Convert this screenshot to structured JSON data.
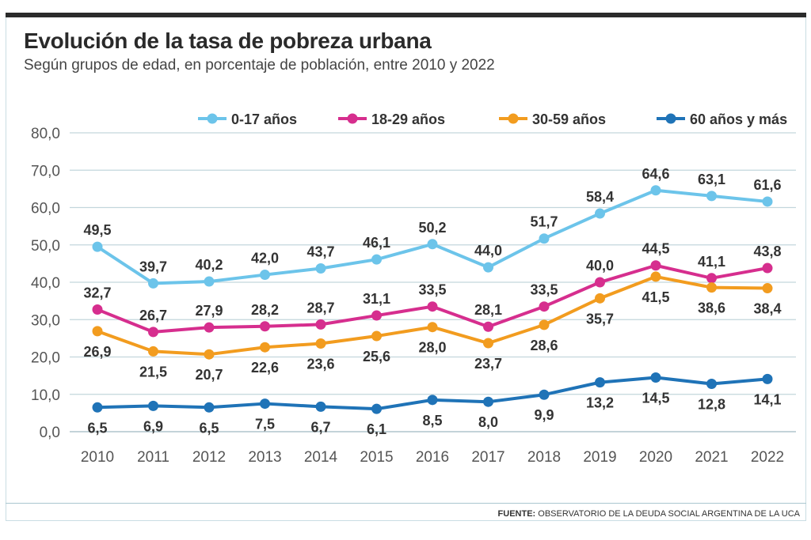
{
  "chart_data": {
    "type": "line",
    "title": "Evolución de la tasa de pobreza urbana",
    "subtitle": "Según grupos de edad, en porcentaje de población, entre 2010 y 2022",
    "xlabel": "",
    "ylabel": "",
    "ylim": [
      0,
      80
    ],
    "yticks": [
      "0,0",
      "10,0",
      "20,0",
      "30,0",
      "40,0",
      "50,0",
      "60,0",
      "70,0",
      "80,0"
    ],
    "categories": [
      "2010",
      "2011",
      "2012",
      "2013",
      "2014",
      "2015",
      "2016",
      "2017",
      "2018",
      "2019",
      "2020",
      "2021",
      "2022"
    ],
    "series": [
      {
        "name": "0-17 años",
        "color": "#6cc4ea",
        "values": [
          49.5,
          39.7,
          40.2,
          42.0,
          43.7,
          46.1,
          50.2,
          44.0,
          51.7,
          58.4,
          64.6,
          63.1,
          61.6
        ],
        "labels": [
          "49,5",
          "39,7",
          "40,2",
          "42,0",
          "43,7",
          "46,1",
          "50,2",
          "44,0",
          "51,7",
          "58,4",
          "64,6",
          "63,1",
          "61,6"
        ],
        "label_position": "above"
      },
      {
        "name": "18-29 años",
        "color": "#d62e8e",
        "values": [
          32.7,
          26.7,
          27.9,
          28.2,
          28.7,
          31.1,
          33.5,
          28.1,
          33.5,
          40.0,
          44.5,
          41.1,
          43.8
        ],
        "labels": [
          "32,7",
          "26,7",
          "27,9",
          "28,2",
          "28,7",
          "31,1",
          "33,5",
          "28,1",
          "33,5",
          "40,0",
          "44,5",
          "41,1",
          "43,8"
        ],
        "label_position": "above"
      },
      {
        "name": "30-59 años",
        "color": "#f29c1f",
        "values": [
          26.9,
          21.5,
          20.7,
          22.6,
          23.6,
          25.6,
          28.0,
          23.7,
          28.6,
          35.7,
          41.5,
          38.6,
          38.4
        ],
        "labels": [
          "26,9",
          "21,5",
          "20,7",
          "22,6",
          "23,6",
          "25,6",
          "28,0",
          "23,7",
          "28,6",
          "35,7",
          "41,5",
          "38,6",
          "38,4"
        ],
        "label_position": "below"
      },
      {
        "name": "60 años y más",
        "color": "#1f73b7",
        "values": [
          6.5,
          6.9,
          6.5,
          7.5,
          6.7,
          6.1,
          8.5,
          8.0,
          9.9,
          13.2,
          14.5,
          12.8,
          14.1
        ],
        "labels": [
          "6,5",
          "6,9",
          "6,5",
          "7,5",
          "6,7",
          "6,1",
          "8,5",
          "8,0",
          "9,9",
          "13,2",
          "14,5",
          "12,8",
          "14,1"
        ],
        "label_position": "below"
      }
    ],
    "legend_position": "top",
    "grid": true
  },
  "source": {
    "label": "FUENTE:",
    "text": "OBSERVATORIO DE LA DEUDA SOCIAL ARGENTINA DE LA UCA"
  }
}
